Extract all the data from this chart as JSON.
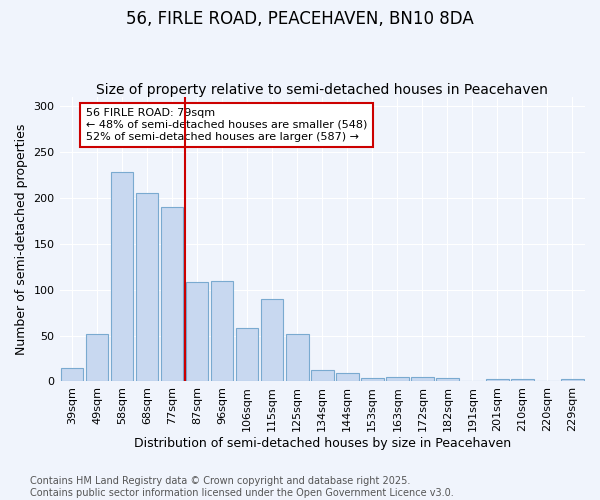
{
  "title": "56, FIRLE ROAD, PEACEHAVEN, BN10 8DA",
  "subtitle": "Size of property relative to semi-detached houses in Peacehaven",
  "xlabel": "Distribution of semi-detached houses by size in Peacehaven",
  "ylabel": "Number of semi-detached properties",
  "categories": [
    "39sqm",
    "49sqm",
    "58sqm",
    "68sqm",
    "77sqm",
    "87sqm",
    "96sqm",
    "106sqm",
    "115sqm",
    "125sqm",
    "134sqm",
    "144sqm",
    "153sqm",
    "163sqm",
    "172sqm",
    "182sqm",
    "191sqm",
    "201sqm",
    "210sqm",
    "220sqm",
    "229sqm"
  ],
  "values": [
    15,
    52,
    228,
    205,
    190,
    108,
    110,
    58,
    90,
    52,
    12,
    9,
    4,
    5,
    5,
    4,
    1,
    3,
    3,
    1,
    3
  ],
  "bar_color": "#c8d8f0",
  "bar_edge_color": "#7aaad0",
  "vline_x": 4.5,
  "vline_color": "#cc0000",
  "annotation_text": "56 FIRLE ROAD: 79sqm\n← 48% of semi-detached houses are smaller (548)\n52% of semi-detached houses are larger (587) →",
  "annotation_box_color": "#ffffff",
  "annotation_box_edge": "#cc0000",
  "ylim": [
    0,
    310
  ],
  "yticks": [
    0,
    50,
    100,
    150,
    200,
    250,
    300
  ],
  "footer": "Contains HM Land Registry data © Crown copyright and database right 2025.\nContains public sector information licensed under the Open Government Licence v3.0.",
  "background_color": "#f0f4fc",
  "grid_color": "#ffffff",
  "title_fontsize": 12,
  "subtitle_fontsize": 10,
  "axis_label_fontsize": 9,
  "tick_fontsize": 8,
  "footer_fontsize": 7,
  "annotation_fontsize": 8
}
